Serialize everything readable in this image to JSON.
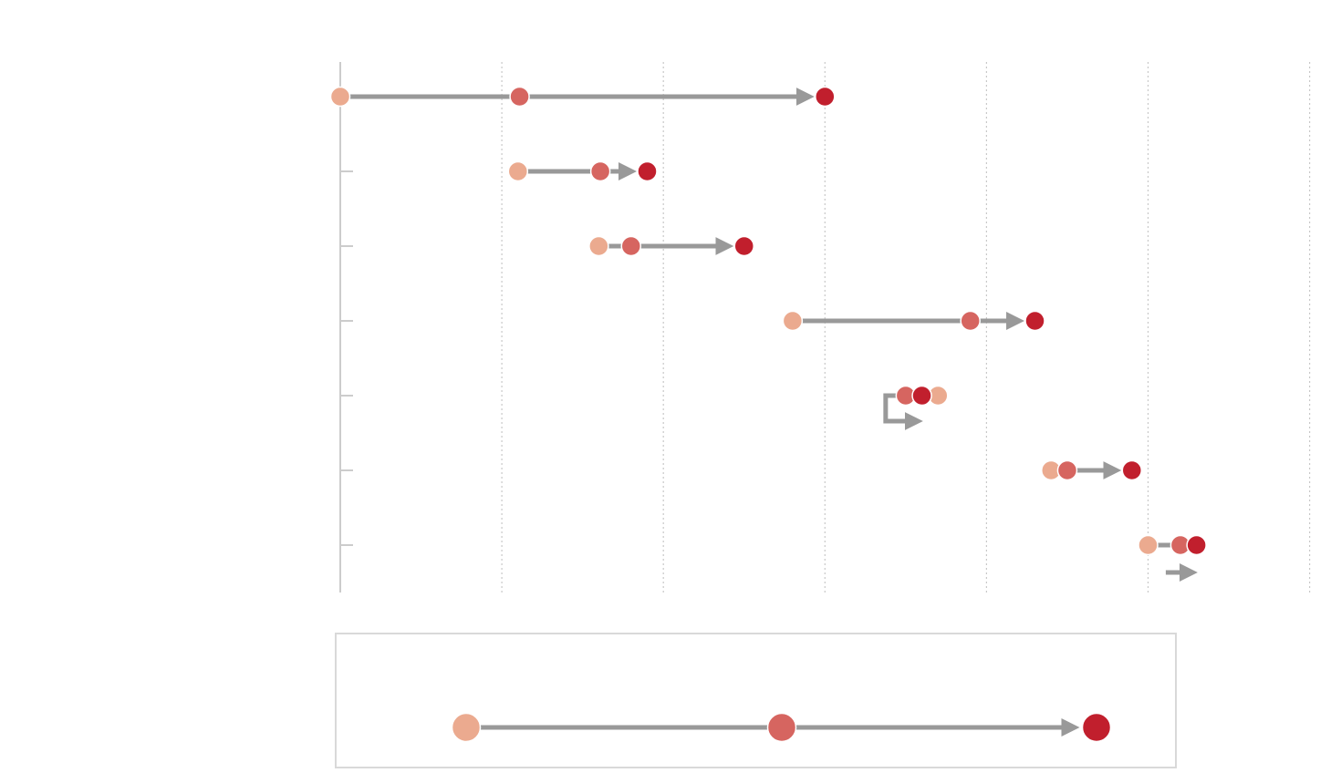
{
  "chart_data": {
    "type": "dot-arrow",
    "title": "",
    "xlabel": "",
    "ylabel": "",
    "xlim": [
      0,
      6
    ],
    "grid": true,
    "gridline_x": [
      0,
      1,
      2,
      3,
      4,
      5,
      6
    ],
    "series_colors": [
      "#EBAA8F",
      "#D66560",
      "#C11F2D"
    ],
    "arrow_color": "#999999",
    "axis_color": "#cccccc",
    "rows": [
      {
        "start": 0.0,
        "mid": 1.11,
        "end": 3.0
      },
      {
        "start": 1.1,
        "mid": 1.61,
        "end": 1.9
      },
      {
        "start": 1.6,
        "mid": 1.8,
        "end": 2.5
      },
      {
        "start": 2.8,
        "mid": 3.9,
        "end": 4.3
      },
      {
        "start": 3.7,
        "mid": 3.5,
        "end": 3.6
      },
      {
        "start": 4.4,
        "mid": 4.5,
        "end": 4.9
      },
      {
        "start": 5.0,
        "mid": 5.2,
        "end": 5.3
      }
    ],
    "legend": {
      "label_start": "",
      "label_mid": "",
      "label_end": ""
    }
  }
}
